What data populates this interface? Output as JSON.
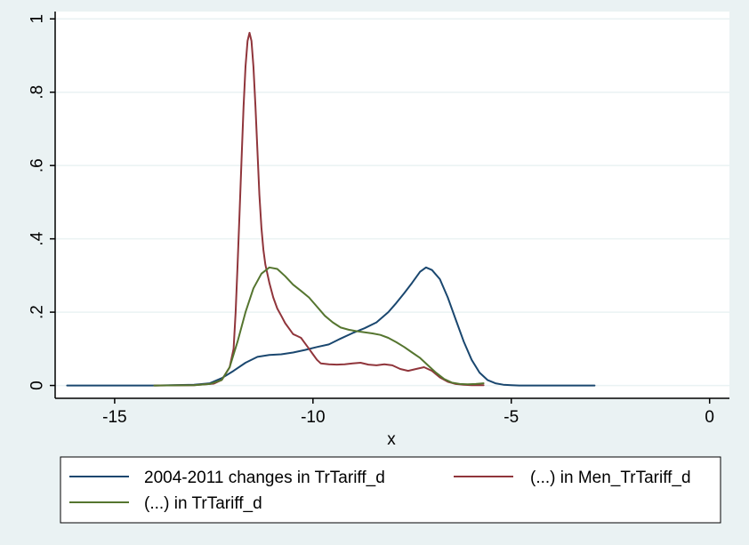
{
  "chart_data": {
    "type": "line",
    "xlabel": "x",
    "ylabel": "",
    "xlim": [
      -16.5,
      0.5
    ],
    "ylim": [
      -0.035,
      1.02
    ],
    "x_ticks": [
      -15,
      -10,
      -5,
      0
    ],
    "x_tick_labels": [
      "-15",
      "-10",
      "-5",
      "0"
    ],
    "y_ticks": [
      0,
      0.2,
      0.4,
      0.6,
      0.8,
      1
    ],
    "y_tick_labels": [
      "0",
      ".2",
      ".4",
      ".6",
      ".8",
      "1"
    ],
    "grid": "horizontal",
    "legend_position": "bottom",
    "series": [
      {
        "name": "2004-2011 changes in TrTariff_d",
        "color": "#1a476f",
        "x": [
          -16.2,
          -15,
          -14,
          -13,
          -12.6,
          -12.3,
          -12.0,
          -11.7,
          -11.4,
          -11.1,
          -10.8,
          -10.5,
          -10.2,
          -9.9,
          -9.6,
          -9.3,
          -9.0,
          -8.7,
          -8.4,
          -8.1,
          -7.9,
          -7.7,
          -7.5,
          -7.3,
          -7.15,
          -7.0,
          -6.8,
          -6.6,
          -6.4,
          -6.2,
          -6.0,
          -5.8,
          -5.6,
          -5.4,
          -5.2,
          -5.0,
          -4.8,
          -4.5,
          -4.0,
          -3.5,
          -2.9
        ],
        "y": [
          0,
          0,
          0,
          0.002,
          0.006,
          0.02,
          0.04,
          0.062,
          0.078,
          0.083,
          0.085,
          0.09,
          0.097,
          0.105,
          0.112,
          0.128,
          0.143,
          0.156,
          0.172,
          0.2,
          0.225,
          0.252,
          0.28,
          0.31,
          0.322,
          0.315,
          0.29,
          0.24,
          0.18,
          0.12,
          0.07,
          0.035,
          0.015,
          0.006,
          0.002,
          0.001,
          0,
          0,
          0,
          0,
          0
        ]
      },
      {
        "name": "(...) in Men_TrTariff_d",
        "color": "#90353b",
        "x": [
          -14,
          -13,
          -12.5,
          -12.3,
          -12.1,
          -12.0,
          -11.95,
          -11.9,
          -11.85,
          -11.8,
          -11.75,
          -11.7,
          -11.65,
          -11.6,
          -11.55,
          -11.5,
          -11.45,
          -11.4,
          -11.35,
          -11.3,
          -11.25,
          -11.2,
          -11.1,
          -11.0,
          -10.9,
          -10.8,
          -10.7,
          -10.6,
          -10.5,
          -10.4,
          -10.3,
          -10.2,
          -10.1,
          -10.0,
          -9.9,
          -9.8,
          -9.6,
          -9.4,
          -9.2,
          -9.0,
          -8.8,
          -8.6,
          -8.4,
          -8.2,
          -8.0,
          -7.8,
          -7.6,
          -7.4,
          -7.2,
          -7.0,
          -6.8,
          -6.6,
          -6.4,
          -6.2,
          -6.0,
          -5.8,
          -5.7
        ],
        "y": [
          0,
          0.001,
          0.005,
          0.015,
          0.05,
          0.1,
          0.2,
          0.33,
          0.47,
          0.62,
          0.76,
          0.87,
          0.94,
          0.962,
          0.94,
          0.87,
          0.76,
          0.64,
          0.52,
          0.43,
          0.37,
          0.33,
          0.28,
          0.24,
          0.21,
          0.19,
          0.17,
          0.155,
          0.14,
          0.135,
          0.13,
          0.115,
          0.1,
          0.085,
          0.07,
          0.06,
          0.058,
          0.057,
          0.058,
          0.06,
          0.062,
          0.057,
          0.055,
          0.058,
          0.055,
          0.045,
          0.04,
          0.045,
          0.05,
          0.04,
          0.022,
          0.01,
          0.004,
          0.002,
          0.001,
          0.001,
          0.001
        ]
      },
      {
        "name": "(...) in TrTariff_d",
        "color": "#55752f",
        "x": [
          -14,
          -13,
          -12.6,
          -12.3,
          -12.1,
          -11.9,
          -11.7,
          -11.5,
          -11.3,
          -11.1,
          -10.9,
          -10.7,
          -10.5,
          -10.3,
          -10.1,
          -9.9,
          -9.7,
          -9.5,
          -9.3,
          -9.1,
          -8.9,
          -8.7,
          -8.5,
          -8.3,
          -8.1,
          -7.9,
          -7.7,
          -7.5,
          -7.3,
          -7.1,
          -6.9,
          -6.7,
          -6.5,
          -6.3,
          -6.1,
          -5.9,
          -5.7
        ],
        "y": [
          0,
          0.001,
          0.004,
          0.015,
          0.05,
          0.12,
          0.2,
          0.265,
          0.305,
          0.322,
          0.318,
          0.298,
          0.275,
          0.258,
          0.24,
          0.215,
          0.19,
          0.172,
          0.158,
          0.152,
          0.148,
          0.145,
          0.142,
          0.138,
          0.13,
          0.118,
          0.105,
          0.09,
          0.075,
          0.055,
          0.035,
          0.018,
          0.008,
          0.004,
          0.003,
          0.004,
          0.006
        ]
      }
    ]
  }
}
